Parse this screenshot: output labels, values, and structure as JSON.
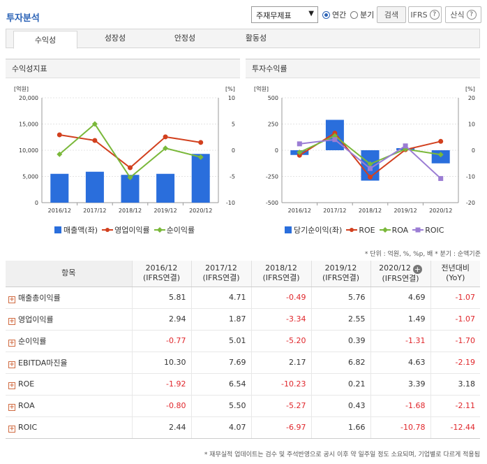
{
  "header": {
    "title": "투자분석",
    "statement_select": "주재무제표",
    "period_annual": "연간",
    "period_quarter": "분기",
    "search_label": "검색",
    "ifrs_label": "IFRS",
    "formula_label": "산식",
    "help_glyph": "?"
  },
  "tabs": [
    {
      "label": "수익성",
      "active": true
    },
    {
      "label": "성장성",
      "active": false
    },
    {
      "label": "안정성",
      "active": false
    },
    {
      "label": "활동성",
      "active": false
    }
  ],
  "panels": {
    "left_title": "수익성지표",
    "right_title": "투자수익률"
  },
  "chart_data": [
    {
      "type": "bar",
      "categories": [
        "2016/12",
        "2017/12",
        "2018/12",
        "2019/12",
        "2020/12"
      ],
      "left_unit": "[억원]",
      "right_unit": "[%]",
      "left_ticks": [
        "20,000",
        "15,000",
        "10,000",
        "5,000",
        "0"
      ],
      "right_ticks": [
        "10",
        "5",
        "0",
        "-5",
        "-10"
      ],
      "ylim_left": [
        0,
        20000
      ],
      "ylim_right": [
        -10,
        10
      ],
      "bar_series": {
        "name": "매출액(좌)",
        "values": [
          5500,
          5900,
          5300,
          5500,
          9300
        ],
        "color": "#2a6edc"
      },
      "line_series": [
        {
          "name": "영업이익률",
          "values": [
            2.94,
            1.87,
            -3.34,
            2.55,
            1.49
          ],
          "color": "#d2401e"
        },
        {
          "name": "순이익률",
          "values": [
            -0.77,
            5.01,
            -5.2,
            0.39,
            -1.31
          ],
          "color": "#7ab83a"
        }
      ]
    },
    {
      "type": "bar",
      "categories": [
        "2016/12",
        "2017/12",
        "2018/12",
        "2019/12",
        "2020/12"
      ],
      "left_unit": "[억원]",
      "right_unit": "[%]",
      "left_ticks": [
        "500",
        "250",
        "0",
        "-250",
        "-500"
      ],
      "right_ticks": [
        "20",
        "10",
        "0",
        "-10",
        "-20"
      ],
      "ylim_left": [
        -500,
        500
      ],
      "ylim_right": [
        -20,
        20
      ],
      "bar_series": {
        "name": "당기순이익(좌)",
        "values": [
          -45,
          290,
          -290,
          20,
          -125
        ],
        "color": "#2a6edc"
      },
      "line_series": [
        {
          "name": "ROE",
          "values": [
            -1.92,
            6.54,
            -10.23,
            0.21,
            3.39
          ],
          "color": "#d2401e",
          "marker": "circle"
        },
        {
          "name": "ROA",
          "values": [
            -0.8,
            5.5,
            -5.27,
            0.43,
            -1.68
          ],
          "color": "#7ab83a",
          "marker": "diamond"
        },
        {
          "name": "ROIC",
          "values": [
            2.44,
            4.07,
            -6.97,
            1.66,
            -10.78
          ],
          "color": "#9b7dd4",
          "marker": "square"
        }
      ]
    }
  ],
  "unit_note": "* 단위 : 억원, %, %p, 배   * 분기 : 순액기준",
  "table": {
    "headers": [
      {
        "l1": "항목",
        "l2": ""
      },
      {
        "l1": "2016/12",
        "l2": "(IFRS연결)"
      },
      {
        "l1": "2017/12",
        "l2": "(IFRS연결)"
      },
      {
        "l1": "2018/12",
        "l2": "(IFRS연결)"
      },
      {
        "l1": "2019/12",
        "l2": "(IFRS연결)"
      },
      {
        "l1": "2020/12",
        "l2": "(IFRS연결)"
      },
      {
        "l1": "전년대비",
        "l2": "(YoY)"
      }
    ],
    "rows": [
      {
        "name": "매출총이익률",
        "values": [
          "5.81",
          "4.71",
          "-0.49",
          "5.76",
          "4.69",
          "-1.07"
        ]
      },
      {
        "name": "영업이익률",
        "values": [
          "2.94",
          "1.87",
          "-3.34",
          "2.55",
          "1.49",
          "-1.07"
        ]
      },
      {
        "name": "순이익률",
        "values": [
          "-0.77",
          "5.01",
          "-5.20",
          "0.39",
          "-1.31",
          "-1.70"
        ]
      },
      {
        "name": "EBITDA마진율",
        "values": [
          "10.30",
          "7.69",
          "2.17",
          "6.82",
          "4.63",
          "-2.19"
        ]
      },
      {
        "name": "ROE",
        "values": [
          "-1.92",
          "6.54",
          "-10.23",
          "0.21",
          "3.39",
          "3.18"
        ]
      },
      {
        "name": "ROA",
        "values": [
          "-0.80",
          "5.50",
          "-5.27",
          "0.43",
          "-1.68",
          "-2.11"
        ]
      },
      {
        "name": "ROIC",
        "values": [
          "2.44",
          "4.07",
          "-6.97",
          "1.66",
          "-10.78",
          "-12.44"
        ]
      }
    ]
  },
  "footnote": "* 재무실적 업데이트는 검수 및 주석반영으로 공시 이후 약 일주일 정도 소요되며, 기업별로 다르게 적용됨"
}
